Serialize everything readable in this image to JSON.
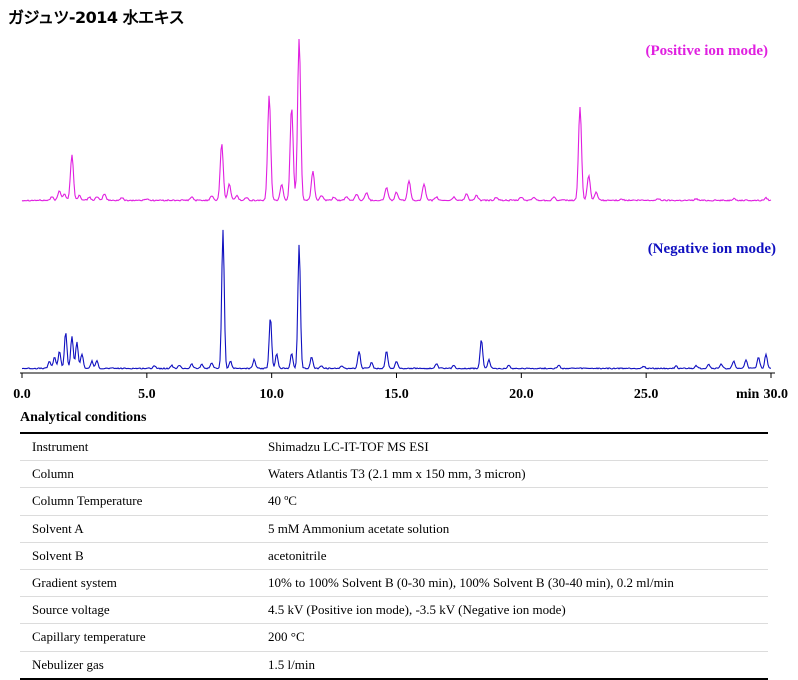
{
  "title": "ガジュツ-2014 水エキス",
  "chart_data": [
    {
      "type": "line",
      "name": "positive-trace",
      "series_label": "(Positive ion mode)",
      "color": "#e020e0",
      "xlim": [
        0,
        30
      ],
      "peaks": [
        [
          1.2,
          0.02
        ],
        [
          1.5,
          0.06
        ],
        [
          1.7,
          0.04
        ],
        [
          2.0,
          0.28
        ],
        [
          2.3,
          0.03
        ],
        [
          2.7,
          0.02
        ],
        [
          3.0,
          0.02
        ],
        [
          3.3,
          0.04
        ],
        [
          4.0,
          0.015
        ],
        [
          5.0,
          0.01
        ],
        [
          6.8,
          0.02
        ],
        [
          7.6,
          0.03
        ],
        [
          8.0,
          0.35
        ],
        [
          8.3,
          0.1
        ],
        [
          8.6,
          0.03
        ],
        [
          9.0,
          0.02
        ],
        [
          9.9,
          0.65
        ],
        [
          10.4,
          0.1
        ],
        [
          10.8,
          0.58
        ],
        [
          11.1,
          1.0
        ],
        [
          11.65,
          0.18
        ],
        [
          12.0,
          0.03
        ],
        [
          12.5,
          0.02
        ],
        [
          13.0,
          0.02
        ],
        [
          13.4,
          0.04
        ],
        [
          13.8,
          0.05
        ],
        [
          14.6,
          0.08
        ],
        [
          15.0,
          0.05
        ],
        [
          15.5,
          0.12
        ],
        [
          16.1,
          0.1
        ],
        [
          16.6,
          0.02
        ],
        [
          17.3,
          0.02
        ],
        [
          17.8,
          0.04
        ],
        [
          18.2,
          0.03
        ],
        [
          19.0,
          0.02
        ],
        [
          20.0,
          0.02
        ],
        [
          20.5,
          0.02
        ],
        [
          21.3,
          0.02
        ],
        [
          22.35,
          0.58
        ],
        [
          22.7,
          0.15
        ],
        [
          23.0,
          0.05
        ],
        [
          24.0,
          0.01
        ],
        [
          25.5,
          0.01
        ],
        [
          27.0,
          0.01
        ],
        [
          28.5,
          0.01
        ],
        [
          29.8,
          0.015
        ]
      ]
    },
    {
      "type": "line",
      "name": "negative-trace",
      "series_label": "(Negative ion mode)",
      "color": "#1010c0",
      "xlim": [
        0,
        30
      ],
      "peaks": [
        [
          1.1,
          0.05
        ],
        [
          1.3,
          0.08
        ],
        [
          1.5,
          0.12
        ],
        [
          1.75,
          0.25
        ],
        [
          2.0,
          0.22
        ],
        [
          2.2,
          0.18
        ],
        [
          2.4,
          0.1
        ],
        [
          2.8,
          0.05
        ],
        [
          3.0,
          0.05
        ],
        [
          5.3,
          0.02
        ],
        [
          6.0,
          0.02
        ],
        [
          6.3,
          0.02
        ],
        [
          6.8,
          0.03
        ],
        [
          7.2,
          0.03
        ],
        [
          7.6,
          0.04
        ],
        [
          8.05,
          0.95
        ],
        [
          8.35,
          0.05
        ],
        [
          9.3,
          0.06
        ],
        [
          9.95,
          0.35
        ],
        [
          10.2,
          0.1
        ],
        [
          10.8,
          0.1
        ],
        [
          11.1,
          0.85
        ],
        [
          11.6,
          0.08
        ],
        [
          12.0,
          0.02
        ],
        [
          12.8,
          0.02
        ],
        [
          13.5,
          0.12
        ],
        [
          14.0,
          0.04
        ],
        [
          14.6,
          0.12
        ],
        [
          15.0,
          0.05
        ],
        [
          16.6,
          0.03
        ],
        [
          17.3,
          0.02
        ],
        [
          18.4,
          0.2
        ],
        [
          18.7,
          0.06
        ],
        [
          19.5,
          0.02
        ],
        [
          21.5,
          0.02
        ],
        [
          24.9,
          0.015
        ],
        [
          26.2,
          0.015
        ],
        [
          27.0,
          0.02
        ],
        [
          27.5,
          0.03
        ],
        [
          28.0,
          0.03
        ],
        [
          28.5,
          0.05
        ],
        [
          29.0,
          0.06
        ],
        [
          29.5,
          0.08
        ],
        [
          29.8,
          0.1
        ]
      ]
    }
  ],
  "x_axis": {
    "ticks": [
      "0.0",
      "5.0",
      "10.0",
      "15.0",
      "20.0",
      "25.0",
      "30.0"
    ],
    "tick_values": [
      0,
      5,
      10,
      15,
      20,
      25,
      30
    ],
    "unit_label": "min"
  },
  "conditions": {
    "heading": "Analytical conditions",
    "rows": [
      {
        "key": "Instrument",
        "value": "Shimadzu LC-IT-TOF MS ESI"
      },
      {
        "key": "Column",
        "value": "Waters Atlantis T3 (2.1 mm x 150 mm, 3 micron)"
      },
      {
        "key": "Column Temperature",
        "value": "40 ºC"
      },
      {
        "key": "Solvent A",
        "value": "5 mM Ammonium acetate solution"
      },
      {
        "key": "Solvent B",
        "value": "acetonitrile"
      },
      {
        "key": "Gradient system",
        "value": "10% to 100% Solvent B (0-30 min), 100% Solvent B (30-40 min), 0.2 ml/min"
      },
      {
        "key": "Source voltage",
        "value": "4.5 kV (Positive ion mode), -3.5 kV (Negative ion mode)"
      },
      {
        "key": "Capillary temperature",
        "value": "200 °C"
      },
      {
        "key": "Nebulizer gas",
        "value": "1.5 l/min"
      }
    ]
  }
}
